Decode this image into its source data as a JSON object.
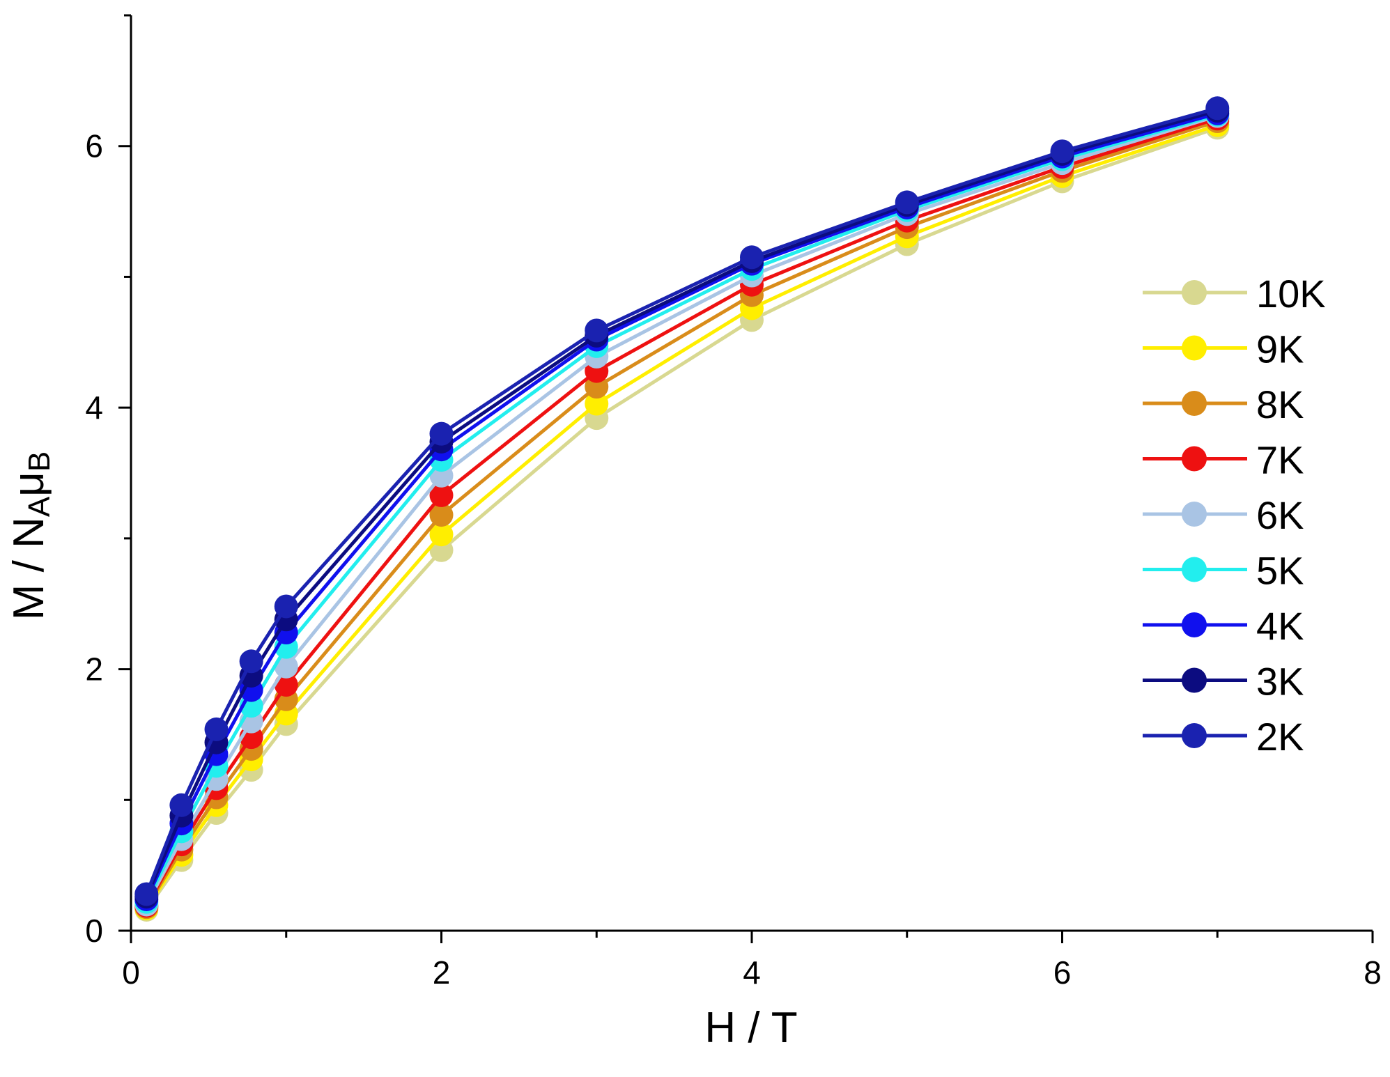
{
  "chart_data": {
    "type": "line",
    "title": "",
    "xlabel": "H / T",
    "ylabel": {
      "main": "M / N",
      "sub1": "A",
      "mu": "μ",
      "sub2": "B"
    },
    "xlim": [
      0,
      8
    ],
    "ylim": [
      0,
      7
    ],
    "xticks": [
      0,
      2,
      4,
      6,
      8
    ],
    "yticks": [
      0,
      2,
      4,
      6
    ],
    "grid": false,
    "legend_position": "right",
    "x": [
      0.1,
      0.325,
      0.55,
      0.775,
      1.0,
      2.0,
      3.0,
      4.0,
      5.0,
      6.0,
      7.0
    ],
    "series": [
      {
        "name": "10K",
        "color": "#d8d890",
        "values": [
          0.16,
          0.54,
          0.9,
          1.23,
          1.58,
          2.91,
          3.92,
          4.67,
          5.25,
          5.73,
          6.14
        ]
      },
      {
        "name": "9K",
        "color": "#ffee00",
        "values": [
          0.17,
          0.58,
          0.96,
          1.31,
          1.66,
          3.03,
          4.03,
          4.76,
          5.31,
          5.77,
          6.16
        ]
      },
      {
        "name": "8K",
        "color": "#d98c1a",
        "values": [
          0.18,
          0.62,
          1.02,
          1.39,
          1.77,
          3.18,
          4.16,
          4.86,
          5.38,
          5.81,
          6.19
        ]
      },
      {
        "name": "7K",
        "color": "#ee1111",
        "values": [
          0.19,
          0.66,
          1.09,
          1.48,
          1.88,
          3.33,
          4.28,
          4.94,
          5.43,
          5.84,
          6.21
        ]
      },
      {
        "name": "6K",
        "color": "#a9c4e4",
        "values": [
          0.2,
          0.7,
          1.16,
          1.6,
          2.02,
          3.48,
          4.39,
          5.01,
          5.48,
          5.87,
          6.23
        ]
      },
      {
        "name": "5K",
        "color": "#22eeee",
        "values": [
          0.22,
          0.76,
          1.26,
          1.72,
          2.17,
          3.6,
          4.47,
          5.06,
          5.51,
          5.9,
          6.24
        ]
      },
      {
        "name": "4K",
        "color": "#1010ee",
        "values": [
          0.24,
          0.82,
          1.35,
          1.84,
          2.28,
          3.68,
          4.52,
          5.1,
          5.53,
          5.92,
          6.25
        ]
      },
      {
        "name": "3K",
        "color": "#0c0c80",
        "values": [
          0.26,
          0.88,
          1.44,
          1.95,
          2.38,
          3.74,
          4.55,
          5.12,
          5.55,
          5.94,
          6.27
        ]
      },
      {
        "name": "2K",
        "color": "#1a22b0",
        "values": [
          0.28,
          0.96,
          1.54,
          2.06,
          2.48,
          3.8,
          4.59,
          5.15,
          5.57,
          5.96,
          6.29
        ]
      }
    ]
  }
}
